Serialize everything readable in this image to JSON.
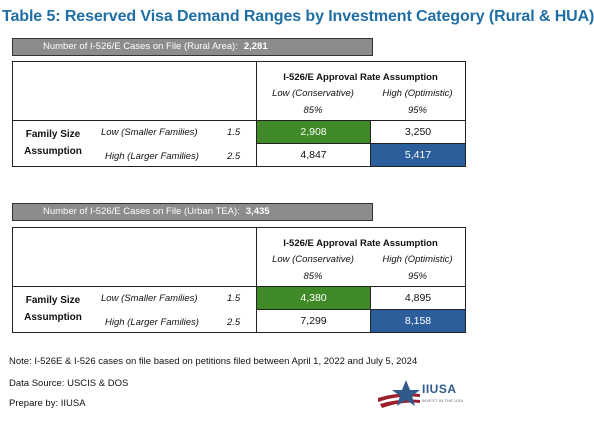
{
  "title": "Table 5: Reserved Visa Demand Ranges by Investment Category (Rural & HUA)",
  "tables": [
    {
      "cases_label": "Number of I-526/E Cases on File (Rural Area):",
      "cases_value": "2,281",
      "header": "I-526/E Approval Rate Assumption",
      "col_low_label": "Low (Conservative)",
      "col_high_label": "High (Optimistic)",
      "col_low_rate": "85%",
      "col_high_rate": "95%",
      "row_group_line1": "Family Size",
      "row_group_line2": "Assumption",
      "row_low_label": "Low (Smaller Families)",
      "row_low_factor": "1.5",
      "row_high_label": "High (Larger Families)",
      "row_high_factor": "2.5",
      "v_low_low": "2,908",
      "v_low_high": "3,250",
      "v_high_low": "4,847",
      "v_high_high": "5,417"
    },
    {
      "cases_label": "Number of I-526/E Cases on File (Urban TEA):",
      "cases_value": "3,435",
      "header": "I-526/E Approval Rate Assumption",
      "col_low_label": "Low (Conservative)",
      "col_high_label": "High (Optimistic)",
      "col_low_rate": "85%",
      "col_high_rate": "95%",
      "row_group_line1": "Family Size",
      "row_group_line2": "Assumption",
      "row_low_label": "Low (Smaller Families)",
      "row_low_factor": "1.5",
      "row_high_label": "High (Larger Families)",
      "row_high_factor": "2.5",
      "v_low_low": "4,380",
      "v_low_high": "4,895",
      "v_high_low": "7,299",
      "v_high_high": "8,158"
    }
  ],
  "notes": {
    "note": "Note: I-526E & I-526 cases on file based on petitions filed between April 1, 2022 and July 5, 2024",
    "source": "Data Source: USCIS & DOS",
    "prepared": "Prepare by: IIUSA"
  },
  "logo": {
    "name": "IIUSA",
    "tagline": "INVEST IN THE USA",
    "icon": "star-flag-logo-icon"
  },
  "colors": {
    "title": "#1f6fa5",
    "highlight_green": "#3f8a26",
    "highlight_blue": "#2b5e9b",
    "bar_gray": "#8c8c8c"
  }
}
